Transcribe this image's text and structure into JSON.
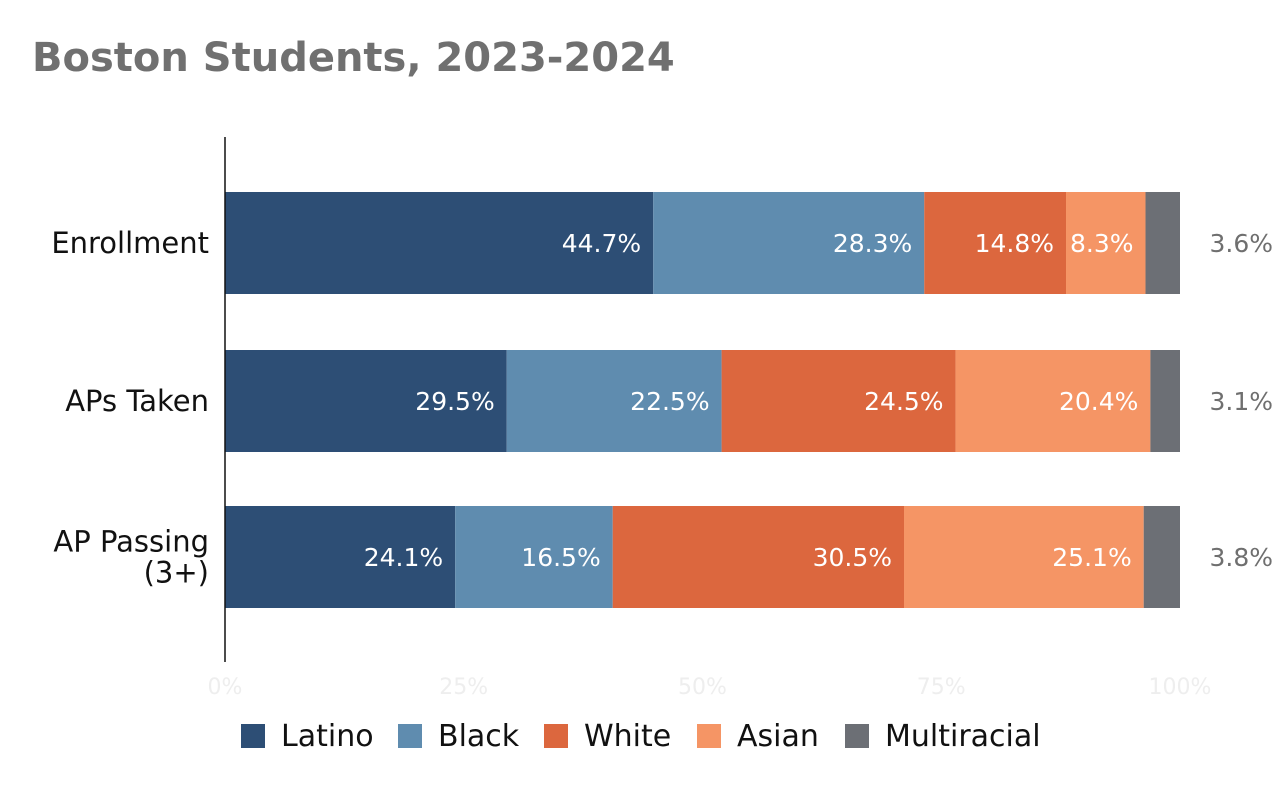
{
  "chart_data": {
    "type": "bar",
    "orientation": "horizontal",
    "stacked": true,
    "title": "Boston Students, 2023-2024",
    "categories": [
      "Enrollment",
      "APs Taken",
      "AP Passing (3+)"
    ],
    "category_lines": [
      [
        "Enrollment"
      ],
      [
        "APs Taken"
      ],
      [
        "AP Passing",
        "(3+)"
      ]
    ],
    "series": [
      {
        "name": "Latino",
        "color": "#2d4e75",
        "values": [
          44.7,
          29.5,
          24.1
        ],
        "labels": [
          "44.7%",
          "29.5%",
          "24.1%"
        ]
      },
      {
        "name": "Black",
        "color": "#5f8caf",
        "values": [
          28.3,
          22.5,
          16.5
        ],
        "labels": [
          "28.3%",
          "22.5%",
          "16.5%"
        ]
      },
      {
        "name": "White",
        "color": "#dc673e",
        "values": [
          14.8,
          24.5,
          30.5
        ],
        "labels": [
          "14.8%",
          "24.5%",
          "30.5%"
        ]
      },
      {
        "name": "Asian",
        "color": "#f59565",
        "values": [
          8.3,
          20.4,
          25.1
        ],
        "labels": [
          "8.3%",
          "20.4%",
          "25.1%"
        ]
      },
      {
        "name": "Multiracial",
        "color": "#6c6f75",
        "values": [
          3.6,
          3.1,
          3.8
        ],
        "labels": [
          "3.6%",
          "3.1%",
          "3.8%"
        ]
      }
    ],
    "x_ticks": [
      "0%",
      "25%",
      "50%",
      "75%",
      "100%"
    ],
    "xlim": [
      0,
      100
    ],
    "legend_position": "bottom"
  }
}
